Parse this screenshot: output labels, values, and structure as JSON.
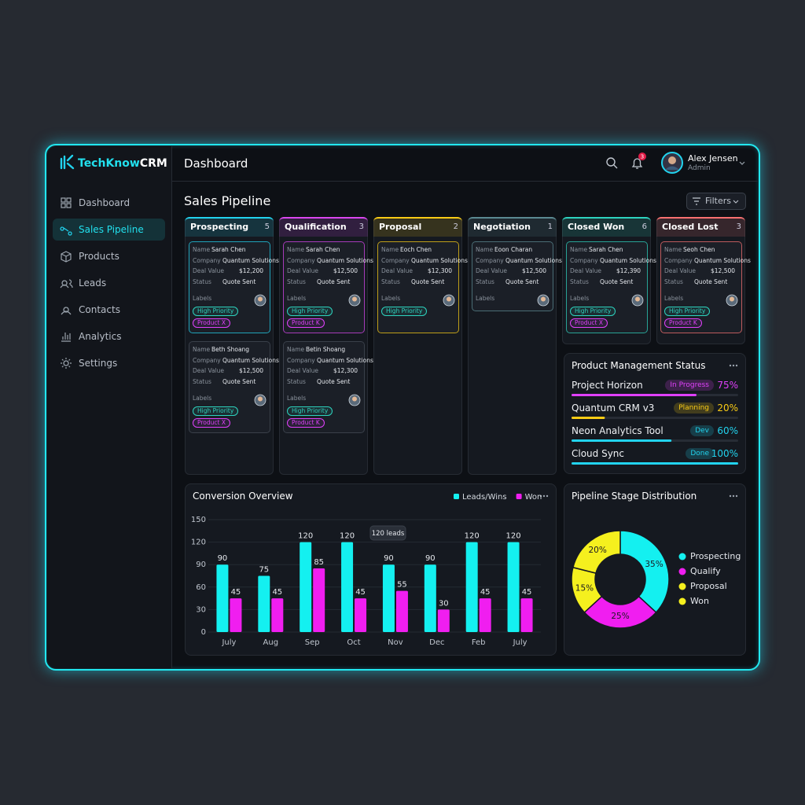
{
  "brand": {
    "accent": "TechKnow",
    "rest": "CRM"
  },
  "nav": {
    "items": [
      "Dashboard",
      "Sales Pipeline",
      "Products",
      "Leads",
      "Contacts",
      "Analytics",
      "Settings"
    ],
    "active": 1
  },
  "header": {
    "title": "Dashboard",
    "notifications": 3,
    "user": {
      "name": "Alex Jensen",
      "role": "Admin"
    }
  },
  "pipeline": {
    "title": "Sales Pipeline",
    "filter": "Filters",
    "field_labels": {
      "name": "Name",
      "company": "Company",
      "deal_value": "Deal Value",
      "status": "Status",
      "labels": "Labels"
    },
    "columns": [
      {
        "name": "Prospecting",
        "count": 5,
        "color": "#22d3ee",
        "cards": [
          {
            "name": "Sarah Chen",
            "company": "Quantum Solutions",
            "deal_value": "$12,200",
            "status": "Quote Sent",
            "labels": [
              "High Priority",
              "Product X"
            ]
          },
          {
            "name": "Beth Shoang",
            "company": "Quantum Solutions",
            "deal_value": "$12,500",
            "status": "Quote Sent",
            "labels": [
              "High Priority",
              "Product X"
            ]
          }
        ]
      },
      {
        "name": "Qualification",
        "count": 3,
        "color": "#d946ef",
        "cards": [
          {
            "name": "Sarah Chen",
            "company": "Quantum Solutions",
            "deal_value": "$12,500",
            "status": "Quote Sent",
            "labels": [
              "High Priority",
              "Product K"
            ]
          },
          {
            "name": "Betin Shoang",
            "company": "Quantum Solutions",
            "deal_value": "$12,300",
            "status": "Quote Sent",
            "labels": [
              "High Priority",
              "Product K"
            ]
          }
        ]
      },
      {
        "name": "Proposal",
        "count": 2,
        "color": "#facc15",
        "cards": [
          {
            "name": "Eoch Chen",
            "company": "Quantum Solutions",
            "deal_value": "$12,300",
            "status": "Quote Sent",
            "labels": [
              "High Priority"
            ]
          }
        ]
      },
      {
        "name": "Negotiation",
        "count": 1,
        "color": "#5b8a92",
        "cards": [
          {
            "name": "Eoon Charan",
            "company": "Quantum Solutions",
            "deal_value": "$12,500",
            "status": "Quote Sent",
            "labels": []
          }
        ]
      },
      {
        "name": "Closed Won",
        "count": 6,
        "color": "#2dd4bf",
        "cards": [
          {
            "name": "Sarah Chen",
            "company": "Quantum Solutions",
            "deal_value": "$12,390",
            "status": "Quote Sent",
            "labels": [
              "High Priority",
              "Product X"
            ]
          }
        ]
      },
      {
        "name": "Closed Lost",
        "count": 3,
        "color": "#f87171",
        "cards": [
          {
            "name": "Seoh Chen",
            "company": "Quantum Solutions",
            "deal_value": "$12,500",
            "status": "Quote Sent",
            "labels": [
              "High Priority",
              "Product K"
            ]
          }
        ]
      }
    ]
  },
  "product_status": {
    "title": "Product Management Status",
    "items": [
      {
        "name": "Project Horizon",
        "status": "In Progress",
        "progress": 75,
        "progress_label": "75%",
        "color": "#e040fb"
      },
      {
        "name": "Quantum CRM v3",
        "status": "Planning",
        "progress": 20,
        "progress_label": "20%",
        "color": "#facc15"
      },
      {
        "name": "Neon Analytics Tool",
        "status": "Dev",
        "progress": 60,
        "progress_label": "60%",
        "color": "#22d3ee"
      },
      {
        "name": "Cloud Sync",
        "status": "Done",
        "progress": 100,
        "progress_label": "100%",
        "color": "#22d3ee"
      }
    ]
  },
  "chart_data": [
    {
      "type": "bar",
      "title": "Conversion Overview",
      "categories": [
        "July",
        "Aug",
        "Sep",
        "Oct",
        "Nov",
        "Dec",
        "Feb",
        "July"
      ],
      "series": [
        {
          "name": "Leads/Wins",
          "color": "#14f0f0",
          "values": [
            90,
            75,
            120,
            120,
            90,
            90,
            120,
            120
          ]
        },
        {
          "name": "Won",
          "color": "#f01ef0",
          "values": [
            45,
            45,
            85,
            45,
            55,
            30,
            45,
            45
          ]
        }
      ],
      "ylim": [
        0,
        150
      ],
      "yticks": [
        0,
        30,
        60,
        90,
        120,
        150
      ],
      "grid": true,
      "legend": "top-right",
      "annotation": "120 leads"
    },
    {
      "type": "pie",
      "title": "Pipeline Stage Distribution",
      "categories": [
        "Prospecting",
        "Qualify",
        "Proposal",
        "Won"
      ],
      "values": [
        35,
        25,
        15,
        20
      ],
      "value_labels": [
        "35%",
        "25%",
        "15%",
        "20%"
      ],
      "colors": [
        "#14f0f0",
        "#f01ef0",
        "#f5f01e",
        "#f5f01e"
      ],
      "donut": true,
      "legend": "right"
    }
  ]
}
